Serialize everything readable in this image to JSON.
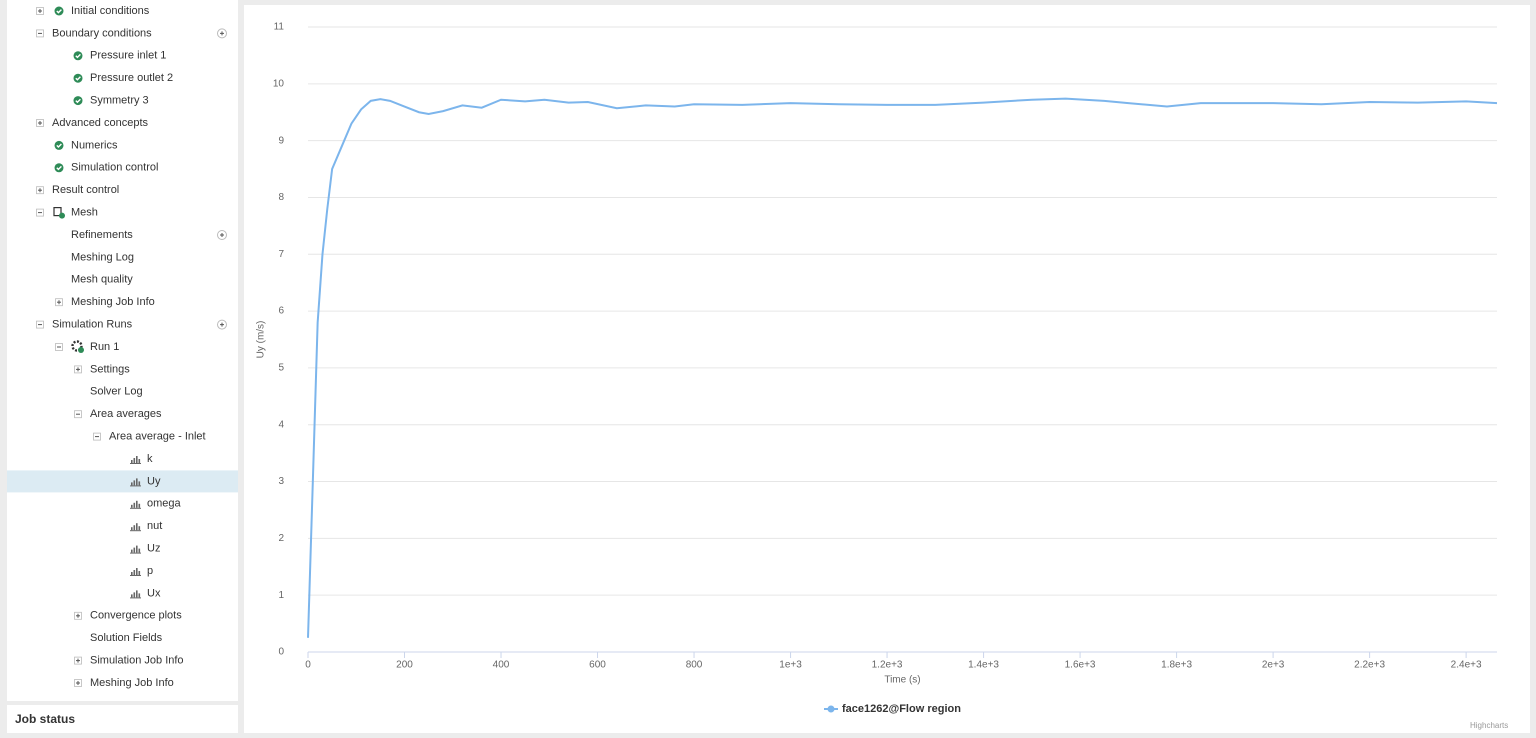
{
  "tree": {
    "items": [
      {
        "label": "Initial conditions",
        "level": 0,
        "expanded": false,
        "icon": "check"
      },
      {
        "label": "Boundary conditions",
        "level": 0,
        "expanded": true,
        "add": true
      },
      {
        "label": "Pressure inlet 1",
        "level": 1,
        "icon": "check"
      },
      {
        "label": "Pressure outlet 2",
        "level": 1,
        "icon": "check"
      },
      {
        "label": "Symmetry 3",
        "level": 1,
        "icon": "check"
      },
      {
        "label": "Advanced concepts",
        "level": 0,
        "expanded": false
      },
      {
        "label": "Numerics",
        "level": 0,
        "icon": "check"
      },
      {
        "label": "Simulation control",
        "level": 0,
        "icon": "check"
      },
      {
        "label": "Result control",
        "level": 0,
        "expanded": false
      },
      {
        "label": "Mesh",
        "level": 0,
        "expanded": true,
        "icon": "mesh"
      },
      {
        "label": "Refinements",
        "level": 1,
        "add": true
      },
      {
        "label": "Meshing Log",
        "level": 1
      },
      {
        "label": "Mesh quality",
        "level": 1
      },
      {
        "label": "Meshing Job Info",
        "level": 1,
        "expanded": false
      },
      {
        "label": "Simulation Runs",
        "level": 0,
        "expanded": true,
        "add": true
      },
      {
        "label": "Run 1",
        "level": 1,
        "expanded": true,
        "icon": "run"
      },
      {
        "label": "Settings",
        "level": 2,
        "expanded": false
      },
      {
        "label": "Solver Log",
        "level": 2
      },
      {
        "label": "Area averages",
        "level": 2,
        "expanded": true
      },
      {
        "label": "Area average - Inlet",
        "level": 3,
        "expanded": true
      },
      {
        "label": "k",
        "level": 4,
        "icon": "chart"
      },
      {
        "label": "Uy",
        "level": 4,
        "icon": "chart",
        "selected": true
      },
      {
        "label": "omega",
        "level": 4,
        "icon": "chart"
      },
      {
        "label": "nut",
        "level": 4,
        "icon": "chart"
      },
      {
        "label": "Uz",
        "level": 4,
        "icon": "chart"
      },
      {
        "label": "p",
        "level": 4,
        "icon": "chart"
      },
      {
        "label": "Ux",
        "level": 4,
        "icon": "chart"
      },
      {
        "label": "Convergence plots",
        "level": 2,
        "expanded": false
      },
      {
        "label": "Solution Fields",
        "level": 2
      },
      {
        "label": "Simulation Job Info",
        "level": 2,
        "expanded": false
      },
      {
        "label": "Meshing Job Info",
        "level": 2,
        "expanded": false
      }
    ]
  },
  "job_status": {
    "title": "Job status"
  },
  "chart_data": {
    "type": "line",
    "y_label": "Uy (m/s)",
    "x_label": "Time (s)",
    "credits": "Highcharts",
    "x": [
      0,
      10,
      20,
      30,
      40,
      50,
      70,
      90,
      110,
      130,
      150,
      170,
      200,
      230,
      250,
      280,
      320,
      360,
      400,
      450,
      490,
      540,
      580,
      640,
      700,
      760,
      800,
      900,
      1000,
      1100,
      1200,
      1300,
      1400,
      1500,
      1570,
      1650,
      1700,
      1780,
      1850,
      2000,
      2100,
      2200,
      2300,
      2400,
      2464
    ],
    "series": [
      {
        "name": "face1262@Flow region",
        "color": "#7cb5ec",
        "values": [
          0.25,
          3,
          5.8,
          7,
          7.8,
          8.5,
          8.9,
          9.3,
          9.55,
          9.7,
          9.73,
          9.7,
          9.6,
          9.5,
          9.47,
          9.52,
          9.62,
          9.58,
          9.72,
          9.69,
          9.72,
          9.67,
          9.68,
          9.57,
          9.62,
          9.6,
          9.64,
          9.63,
          9.66,
          9.64,
          9.63,
          9.63,
          9.67,
          9.72,
          9.74,
          9.7,
          9.66,
          9.6,
          9.66,
          9.66,
          9.64,
          9.68,
          9.67,
          9.69,
          9.66
        ]
      }
    ],
    "xlim": [
      0,
      2464
    ],
    "ylim": [
      0,
      11
    ],
    "xticks": [
      0,
      200,
      400,
      600,
      800,
      {
        "value": 1000,
        "label": "1e+3"
      },
      {
        "value": 1200,
        "label": "1.2e+3"
      },
      {
        "value": 1400,
        "label": "1.4e+3"
      },
      {
        "value": 1600,
        "label": "1.6e+3"
      },
      {
        "value": 1800,
        "label": "1.8e+3"
      },
      {
        "value": 2000,
        "label": "2e+3"
      },
      {
        "value": 2200,
        "label": "2.2e+3"
      },
      {
        "value": 2400,
        "label": "2.4e+3"
      }
    ],
    "yticks": [
      0,
      1,
      2,
      3,
      4,
      5,
      6,
      7,
      8,
      9,
      10,
      11
    ],
    "grid": true
  }
}
